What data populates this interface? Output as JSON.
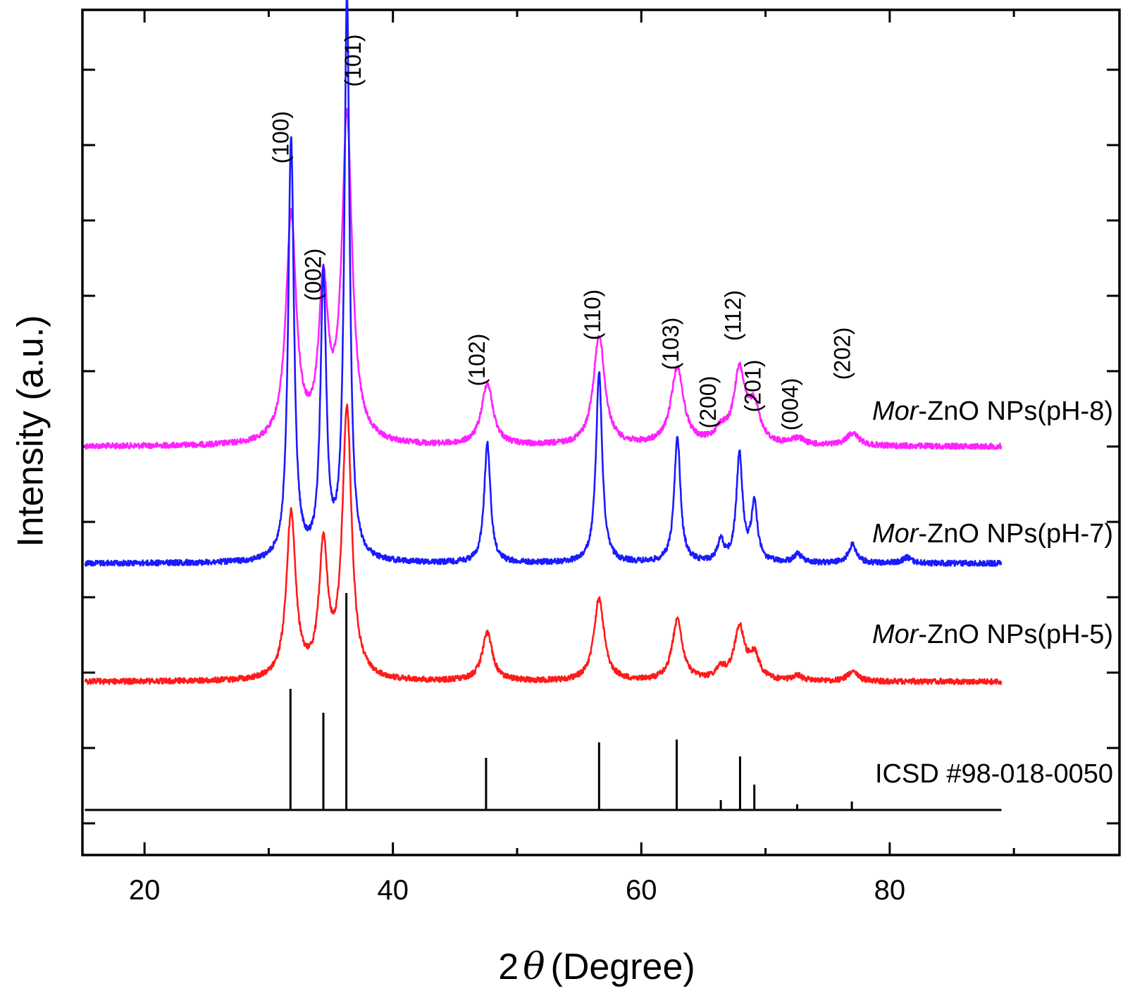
{
  "chart_data": {
    "type": "line",
    "xlabel_prefix": "2",
    "xlabel_symbol": "θ",
    "xlabel_unit": "(Degree)",
    "ylabel": "Intensity (a.u.)",
    "xlim": [
      15,
      98.5
    ],
    "x_ticks": [
      20,
      40,
      60,
      80
    ],
    "x_tick_labels": [
      "20",
      "40",
      "60",
      "80"
    ],
    "y_ticks_labeled": false,
    "grid": false,
    "series": [
      {
        "name_italic": "Mor",
        "name_rest": "-ZnO NPs(pH-8)",
        "color": "#ff22ff",
        "baseline": 634,
        "noise": 4,
        "peaks": [
          {
            "x": 31.8,
            "h": 322,
            "w": 0.5
          },
          {
            "x": 34.4,
            "h": 214,
            "w": 0.45
          },
          {
            "x": 36.3,
            "h": 460,
            "w": 0.5
          },
          {
            "x": 47.6,
            "h": 88,
            "w": 0.55
          },
          {
            "x": 56.6,
            "h": 156,
            "w": 0.55
          },
          {
            "x": 62.9,
            "h": 110,
            "w": 0.6
          },
          {
            "x": 66.4,
            "h": 18,
            "w": 0.6
          },
          {
            "x": 67.9,
            "h": 102,
            "w": 0.55
          },
          {
            "x": 69.1,
            "h": 52,
            "w": 0.55
          },
          {
            "x": 72.6,
            "h": 10,
            "w": 0.6
          },
          {
            "x": 77.0,
            "h": 18,
            "w": 0.6
          }
        ]
      },
      {
        "name_italic": "Mor",
        "name_rest": "-ZnO NPs(pH-7)",
        "color": "#1a1aff",
        "baseline": 800,
        "noise": 4,
        "peaks": [
          {
            "x": 31.8,
            "h": 600,
            "w": 0.28
          },
          {
            "x": 34.4,
            "h": 400,
            "w": 0.28
          },
          {
            "x": 36.3,
            "h": 800,
            "w": 0.26
          },
          {
            "x": 47.6,
            "h": 170,
            "w": 0.3
          },
          {
            "x": 56.6,
            "h": 270,
            "w": 0.3
          },
          {
            "x": 62.9,
            "h": 180,
            "w": 0.3
          },
          {
            "x": 66.4,
            "h": 30,
            "w": 0.3
          },
          {
            "x": 67.9,
            "h": 152,
            "w": 0.3
          },
          {
            "x": 69.1,
            "h": 82,
            "w": 0.3
          },
          {
            "x": 72.6,
            "h": 12,
            "w": 0.4
          },
          {
            "x": 77.0,
            "h": 26,
            "w": 0.4
          },
          {
            "x": 81.4,
            "h": 8,
            "w": 0.4
          }
        ]
      },
      {
        "name_italic": "Mor",
        "name_rest": "-ZnO NPs(pH-5)",
        "color": "#ff1a1a",
        "baseline": 968,
        "noise": 4,
        "peaks": [
          {
            "x": 31.8,
            "h": 235,
            "w": 0.45
          },
          {
            "x": 34.4,
            "h": 182,
            "w": 0.42
          },
          {
            "x": 36.3,
            "h": 382,
            "w": 0.45
          },
          {
            "x": 47.6,
            "h": 68,
            "w": 0.5
          },
          {
            "x": 56.6,
            "h": 116,
            "w": 0.5
          },
          {
            "x": 62.9,
            "h": 86,
            "w": 0.5
          },
          {
            "x": 66.4,
            "h": 14,
            "w": 0.5
          },
          {
            "x": 67.9,
            "h": 74,
            "w": 0.5
          },
          {
            "x": 69.1,
            "h": 34,
            "w": 0.5
          },
          {
            "x": 72.6,
            "h": 7,
            "w": 0.5
          },
          {
            "x": 77.0,
            "h": 14,
            "w": 0.5
          }
        ]
      }
    ],
    "reference": {
      "name": "ICSD #98-018-0050",
      "color": "#000000",
      "baseline": 1150,
      "lines": [
        {
          "x": 31.75,
          "h": 172
        },
        {
          "x": 34.4,
          "h": 138
        },
        {
          "x": 36.25,
          "h": 308
        },
        {
          "x": 47.5,
          "h": 74
        },
        {
          "x": 56.6,
          "h": 96
        },
        {
          "x": 62.85,
          "h": 100
        },
        {
          "x": 66.4,
          "h": 14
        },
        {
          "x": 67.95,
          "h": 76
        },
        {
          "x": 69.1,
          "h": 36
        },
        {
          "x": 72.55,
          "h": 8
        },
        {
          "x": 76.95,
          "h": 12
        }
      ]
    },
    "annotations": [
      {
        "text": "(100)",
        "x": 31.8
      },
      {
        "text": "(002)",
        "x": 34.4
      },
      {
        "text": "(101)",
        "x": 37.6
      },
      {
        "text": "(102)",
        "x": 47.6
      },
      {
        "text": "(110)",
        "x": 56.9
      },
      {
        "text": "(103)",
        "x": 63.2
      },
      {
        "text": "(200)",
        "x": 66.2
      },
      {
        "text": "(112)",
        "x": 68.2
      },
      {
        "text": "(201)",
        "x": 69.8
      },
      {
        "text": "(004)",
        "x": 72.8
      },
      {
        "text": "(202)",
        "x": 77.0
      }
    ]
  }
}
